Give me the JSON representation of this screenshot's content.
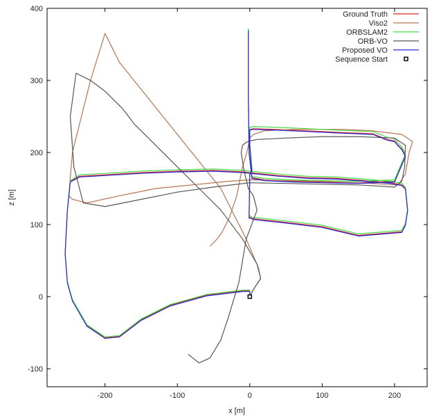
{
  "chart_data": {
    "type": "line",
    "xlabel": "x [m]",
    "ylabel": "z [m]",
    "xlim": [
      -280,
      245
    ],
    "ylim": [
      -125,
      400
    ],
    "xticks": [
      -200,
      -100,
      0,
      100,
      200
    ],
    "yticks": [
      -100,
      0,
      100,
      200,
      300,
      400
    ],
    "grid": false,
    "legend_position": "top-right",
    "start_point": {
      "name": "Sequence Start",
      "x": 0,
      "y": 0
    },
    "series": [
      {
        "name": "Ground Truth",
        "color": "#d62728",
        "x": [
          0,
          0,
          -10,
          -60,
          -110,
          -150,
          -180,
          -200,
          -225,
          -245,
          -252,
          -255,
          -252,
          -248,
          -235,
          -200,
          -150,
          -100,
          -50,
          -8,
          0,
          40,
          80,
          120,
          160,
          195,
          210,
          215,
          218,
          215,
          210,
          150,
          100,
          50,
          5,
          0,
          -1,
          0,
          3,
          0,
          0,
          0,
          5,
          35,
          80,
          120,
          170,
          190,
          200,
          205,
          210,
          215,
          200,
          150,
          100,
          60,
          20,
          3,
          -1,
          -2,
          -2
        ],
        "y": [
          0,
          8,
          8,
          2,
          -12,
          -32,
          -55,
          -57,
          -40,
          -5,
          20,
          60,
          120,
          160,
          167,
          169,
          172,
          174,
          175,
          173,
          172,
          168,
          165,
          164,
          161,
          158,
          155,
          150,
          120,
          100,
          90,
          85,
          97,
          103,
          108,
          110,
          110,
          170,
          175,
          210,
          228,
          232,
          233,
          232,
          230,
          228,
          226,
          218,
          216,
          210,
          205,
          195,
          160,
          158,
          159,
          160,
          162,
          165,
          200,
          280,
          370
        ]
      },
      {
        "name": "Viso2",
        "color": "#b5734f",
        "x": [
          0,
          5,
          15,
          12,
          -5,
          -40,
          -80,
          -120,
          -160,
          -180,
          -190,
          -200,
          -220,
          -245,
          -250,
          -245,
          -225,
          -180,
          -130,
          -80,
          -30,
          0,
          50,
          100,
          150,
          205,
          215,
          220,
          225,
          210,
          170,
          130,
          100,
          60,
          20,
          5,
          0,
          -4,
          -10,
          -18,
          -28,
          -38,
          -45,
          -50,
          -55
        ],
        "y": [
          0,
          10,
          25,
          40,
          80,
          150,
          200,
          250,
          300,
          325,
          345,
          365,
          300,
          200,
          140,
          135,
          130,
          140,
          150,
          155,
          160,
          162,
          161,
          160,
          158,
          155,
          170,
          200,
          215,
          225,
          230,
          232,
          232,
          232,
          230,
          225,
          220,
          200,
          180,
          140,
          110,
          90,
          80,
          75,
          70
        ]
      },
      {
        "name": "ORBSLAM2",
        "color": "#44d944",
        "x": [
          0,
          0,
          -10,
          -60,
          -110,
          -150,
          -180,
          -200,
          -225,
          -245,
          -252,
          -255,
          -252,
          -248,
          -235,
          -200,
          -150,
          -100,
          -50,
          -8,
          0,
          40,
          80,
          120,
          160,
          195,
          210,
          215,
          218,
          215,
          210,
          150,
          100,
          50,
          5,
          0,
          -1,
          0,
          3,
          0,
          0,
          0,
          5,
          35,
          80,
          120,
          170,
          190,
          200,
          205,
          210,
          215,
          200,
          150,
          100,
          60,
          20,
          3,
          -1,
          -2,
          -2
        ],
        "y": [
          0,
          9,
          9,
          3,
          -11,
          -31,
          -54,
          -56,
          -39,
          -4,
          21,
          61,
          121,
          161,
          169,
          171,
          174,
          176,
          177,
          175,
          174,
          170,
          167,
          166,
          163,
          160,
          157,
          152,
          122,
          102,
          92,
          87,
          99,
          105,
          110,
          112,
          112,
          172,
          177,
          212,
          230,
          235,
          236,
          235,
          233,
          231,
          229,
          221,
          219,
          213,
          208,
          198,
          162,
          160,
          161,
          162,
          164,
          167,
          202,
          282,
          372
        ]
      },
      {
        "name": "ORB-VO",
        "color": "#555555",
        "x": [
          0,
          5,
          15,
          10,
          -10,
          -40,
          -70,
          -100,
          -130,
          -160,
          -175,
          -185,
          -200,
          -220,
          -240,
          -248,
          -243,
          -230,
          -200,
          -150,
          -100,
          -50,
          0,
          50,
          100,
          150,
          200,
          210,
          214,
          215,
          200,
          150,
          100,
          50,
          10,
          0,
          -5,
          -10,
          -12,
          -8,
          -2,
          5,
          10,
          -5,
          -15,
          -30,
          -40,
          -55,
          -70,
          -85
        ],
        "y": [
          0,
          10,
          25,
          45,
          80,
          120,
          150,
          180,
          210,
          240,
          260,
          270,
          285,
          300,
          310,
          250,
          180,
          130,
          125,
          135,
          145,
          152,
          158,
          157,
          156,
          155,
          152,
          160,
          180,
          210,
          220,
          222,
          222,
          220,
          218,
          216,
          214,
          210,
          200,
          175,
          150,
          140,
          120,
          80,
          20,
          -30,
          -60,
          -85,
          -92,
          -80
        ]
      },
      {
        "name": "Proposed VO",
        "color": "#2b2bd6",
        "x": [
          0,
          0,
          -10,
          -60,
          -110,
          -150,
          -180,
          -200,
          -225,
          -245,
          -252,
          -255,
          -252,
          -248,
          -235,
          -200,
          -150,
          -100,
          -50,
          -8,
          0,
          40,
          80,
          120,
          160,
          195,
          210,
          215,
          218,
          215,
          210,
          150,
          100,
          50,
          5,
          0,
          -1,
          0,
          3,
          0,
          0,
          0,
          5,
          35,
          80,
          120,
          170,
          190,
          200,
          205,
          210,
          215,
          200,
          150,
          100,
          60,
          20,
          3,
          -1,
          -2,
          -2
        ],
        "y": [
          0,
          7,
          7,
          1,
          -13,
          -33,
          -56,
          -58,
          -41,
          -6,
          19,
          59,
          119,
          159,
          166,
          168,
          171,
          173,
          174,
          172,
          171,
          167,
          164,
          163,
          160,
          157,
          154,
          149,
          119,
          99,
          89,
          84,
          96,
          102,
          107,
          109,
          109,
          169,
          174,
          209,
          227,
          231,
          232,
          231,
          229,
          227,
          225,
          217,
          215,
          209,
          204,
          194,
          159,
          157,
          158,
          159,
          161,
          164,
          199,
          279,
          369
        ]
      }
    ]
  }
}
